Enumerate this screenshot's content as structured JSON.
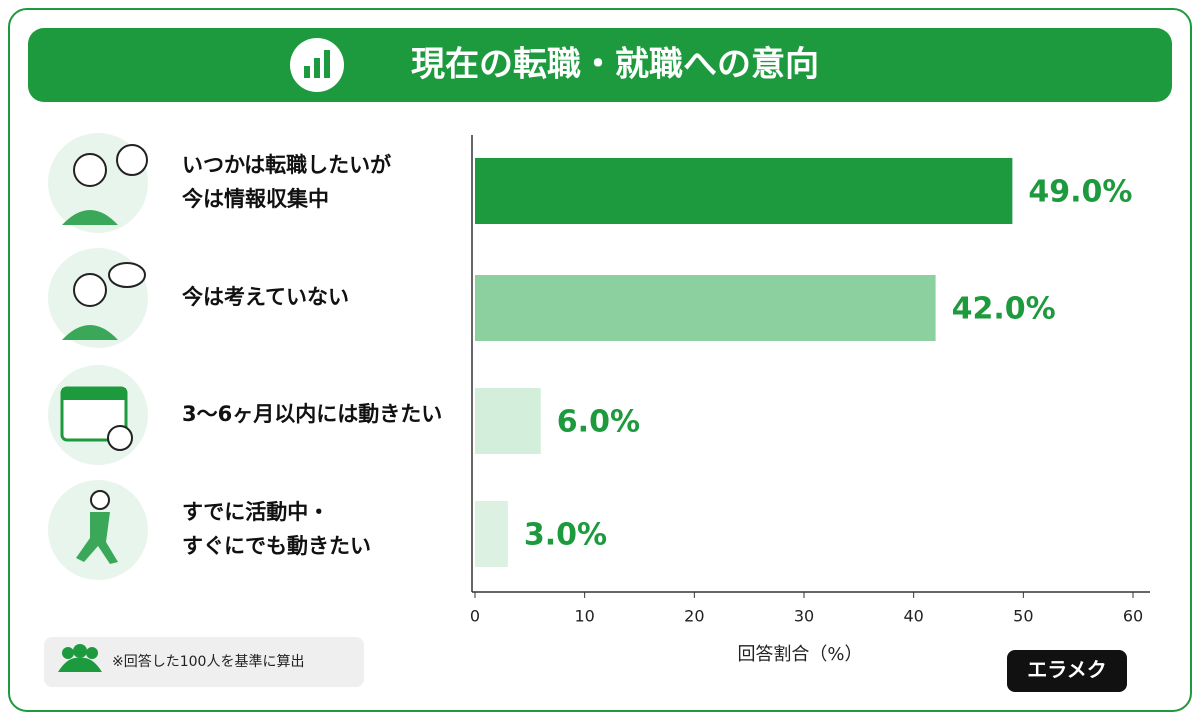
{
  "chart_data": {
    "type": "bar",
    "orientation": "horizontal",
    "title": "現在の転職・就職への意向",
    "categories": [
      "いつかは転職したいが\n今は情報収集中",
      "今は考えていない",
      "3〜6ヶ月以内には動きたい",
      "すでに活動中・\nすぐにでも動きたい"
    ],
    "values": [
      49.0,
      42.0,
      6.0,
      3.0
    ],
    "value_labels": [
      "49.0%",
      "42.0%",
      "6.0%",
      "3.0%"
    ],
    "colors": [
      "#1e9a3e",
      "#8dd0a0",
      "#d3eedb",
      "#ddf1e3"
    ],
    "label_color": "#1e9a3e",
    "xlim": [
      0,
      60
    ],
    "xticks": [
      0,
      10,
      20,
      30,
      40,
      50,
      60
    ],
    "xlabel": "回答割合（%）",
    "footnote": "※回答した100人を基準に算出",
    "brand": "エラメク"
  }
}
